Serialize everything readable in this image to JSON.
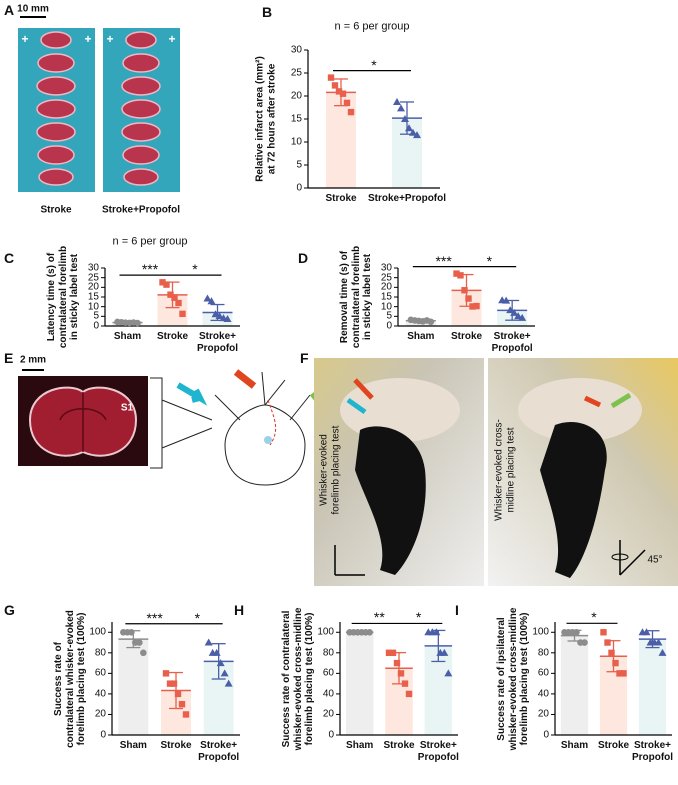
{
  "panels": {
    "A": {
      "letter": "A",
      "scale": "10 mm",
      "plus": "+",
      "labels": [
        "Stroke",
        "Stroke+Propofol"
      ]
    },
    "E": {
      "letter": "E",
      "scale": "2 mm",
      "region": "S1"
    },
    "F": {
      "letter": "F",
      "labels": [
        "Whisker-evoked\nforelimb placing test",
        "Whisker-evoked cross-\nmidline placing test"
      ],
      "angle": "45°"
    }
  },
  "chart_data": [
    {
      "type": "bar",
      "letter": "B",
      "annotation": "n = 6 per group",
      "ylabel": "Relative infarct area (mm²)\nat 72 hours after stroke",
      "categories": [
        "Stroke",
        "Stroke+Propofol"
      ],
      "values": [
        20.8,
        15.2
      ],
      "errors": [
        2.9,
        3.5
      ],
      "points": [
        [
          24,
          22.3,
          21,
          20.5,
          18.5,
          16.5
        ],
        [
          18.7,
          17.3,
          15,
          13,
          12,
          11.5
        ]
      ],
      "colors": [
        "#e8604c",
        "#4a5fa8"
      ],
      "fills": [
        "#fde7df",
        "#e9f5f4"
      ],
      "markers": [
        "square",
        "triangle"
      ],
      "ylim": [
        0,
        30
      ],
      "yticks": [
        0,
        5,
        10,
        15,
        20,
        25,
        30
      ],
      "significance": [
        {
          "between": [
            0,
            1
          ],
          "label": "*"
        }
      ]
    },
    {
      "type": "bar",
      "letter": "C",
      "annotation": "n = 6 per group",
      "ylabel": "Latency time (s) of\ncontralateral forelimb\nin sticky label test",
      "categories": [
        "Sham",
        "Stroke",
        "Stroke+\nPropofol"
      ],
      "values": [
        1.8,
        16.1,
        7.0
      ],
      "errors": [
        0.3,
        6.6,
        4.1
      ],
      "points": [
        [
          2.1,
          1.9,
          1.7,
          1.6,
          1.8,
          1.5
        ],
        [
          22.6,
          21.4,
          16.2,
          14.6,
          11.9,
          6.3
        ],
        [
          14.2,
          12.8,
          6.1,
          5.2,
          4.1,
          3.6
        ]
      ],
      "colors": [
        "#8c8c8c",
        "#e8604c",
        "#4a5fa8"
      ],
      "fills": [
        "#eeeeee",
        "#fde7df",
        "#e9f5f4"
      ],
      "markers": [
        "circle",
        "square",
        "triangle"
      ],
      "ylim": [
        0,
        30
      ],
      "yticks": [
        0,
        5,
        10,
        15,
        20,
        25,
        30
      ],
      "significance": [
        {
          "between": [
            0,
            1
          ],
          "label": "***"
        },
        {
          "between": [
            1,
            2
          ],
          "label": "*"
        }
      ]
    },
    {
      "type": "bar",
      "letter": "D",
      "ylabel": "Removal time (s) of\ncontralateral forelimb\nin sticky label test",
      "categories": [
        "Sham",
        "Stroke",
        "Stroke+\nPropofol"
      ],
      "values": [
        2.7,
        18.4,
        8.1
      ],
      "errors": [
        0.5,
        8.2,
        5.1
      ],
      "points": [
        [
          3.2,
          2.9,
          2.6,
          2.4,
          2.9,
          2.2
        ],
        [
          27.1,
          26.2,
          18.5,
          14.2,
          10.1,
          10.3
        ],
        [
          13.3,
          13.1,
          8.2,
          6.8,
          5.1,
          4.2
        ]
      ],
      "colors": [
        "#8c8c8c",
        "#e8604c",
        "#4a5fa8"
      ],
      "fills": [
        "#eeeeee",
        "#fde7df",
        "#e9f5f4"
      ],
      "markers": [
        "circle",
        "square",
        "triangle"
      ],
      "ylim": [
        0,
        30
      ],
      "yticks": [
        0,
        5,
        10,
        15,
        20,
        25,
        30
      ],
      "significance": [
        {
          "between": [
            0,
            1
          ],
          "label": "***"
        },
        {
          "between": [
            1,
            2
          ],
          "label": "*"
        }
      ]
    },
    {
      "type": "bar",
      "letter": "G",
      "ylabel": "Success rate of\ncontralateral whisker-evoked\nforelimb placing test (100%)",
      "categories": [
        "Sham",
        "Stroke",
        "Stroke+\nPropofol"
      ],
      "values": [
        93.3,
        43.3,
        71.7
      ],
      "errors": [
        8.2,
        17.5,
        17.2
      ],
      "points": [
        [
          100,
          100,
          100,
          90,
          90,
          80
        ],
        [
          60,
          50,
          50,
          40,
          30,
          20
        ],
        [
          90,
          80,
          80,
          70,
          60,
          50
        ]
      ],
      "colors": [
        "#8c8c8c",
        "#e8604c",
        "#4a5fa8"
      ],
      "fills": [
        "#eeeeee",
        "#fde7df",
        "#e9f5f4"
      ],
      "markers": [
        "circle",
        "square",
        "triangle"
      ],
      "ylim": [
        0,
        110
      ],
      "yticks": [
        0,
        20,
        40,
        60,
        80,
        100
      ],
      "significance": [
        {
          "between": [
            0,
            1
          ],
          "label": "***"
        },
        {
          "between": [
            1,
            2
          ],
          "label": "*"
        }
      ]
    },
    {
      "type": "bar",
      "letter": "H",
      "ylabel": "Success rate of contralateral\nwhisker-evoked cross-midline\nforelimb placing test (100%)",
      "categories": [
        "Sham",
        "Stroke",
        "Stroke+\nPropofol"
      ],
      "values": [
        100,
        65,
        86.7
      ],
      "errors": [
        0,
        15.2,
        15.1
      ],
      "points": [
        [
          100,
          100,
          100,
          100,
          100,
          100
        ],
        [
          80,
          80,
          70,
          60,
          50,
          40
        ],
        [
          100,
          100,
          100,
          80,
          80,
          60
        ]
      ],
      "colors": [
        "#8c8c8c",
        "#e8604c",
        "#4a5fa8"
      ],
      "fills": [
        "#eeeeee",
        "#fde7df",
        "#e9f5f4"
      ],
      "markers": [
        "circle",
        "square",
        "triangle"
      ],
      "ylim": [
        0,
        110
      ],
      "yticks": [
        0,
        20,
        40,
        60,
        80,
        100
      ],
      "significance": [
        {
          "between": [
            0,
            1
          ],
          "label": "**"
        },
        {
          "between": [
            1,
            2
          ],
          "label": "*"
        }
      ]
    },
    {
      "type": "bar",
      "letter": "I",
      "ylabel": "Success rate of ipsilateral\nwhisker-evoked cross-midline\nforelimb placing test (100%)",
      "categories": [
        "Sham",
        "Stroke",
        "Stroke+\nPropofol"
      ],
      "values": [
        96.7,
        76.7,
        93.3
      ],
      "errors": [
        5.2,
        15.1,
        8.2
      ],
      "points": [
        [
          100,
          100,
          100,
          100,
          90,
          90
        ],
        [
          100,
          90,
          80,
          70,
          60,
          60
        ],
        [
          100,
          100,
          90,
          90,
          90,
          80
        ]
      ],
      "colors": [
        "#8c8c8c",
        "#e8604c",
        "#4a5fa8"
      ],
      "fills": [
        "#eeeeee",
        "#fde7df",
        "#e9f5f4"
      ],
      "markers": [
        "circle",
        "square",
        "triangle"
      ],
      "ylim": [
        0,
        110
      ],
      "yticks": [
        0,
        20,
        40,
        60,
        80,
        100
      ],
      "significance": [
        {
          "between": [
            0,
            1
          ],
          "label": "*"
        }
      ]
    }
  ]
}
